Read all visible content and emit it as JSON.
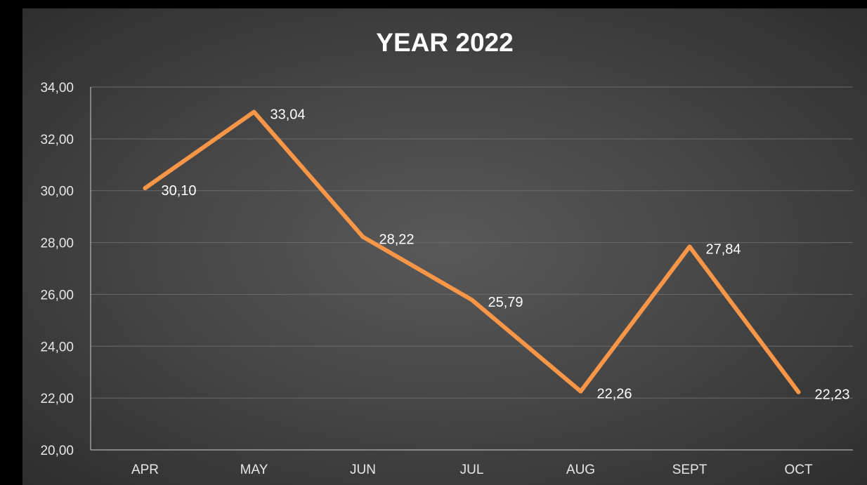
{
  "chart_data": {
    "type": "line",
    "title": "YEAR 2022",
    "categories": [
      "APR",
      "MAY",
      "JUN",
      "JUL",
      "AUG",
      "SEPT",
      "OCT"
    ],
    "series": [
      {
        "values": [
          30.1,
          33.04,
          28.22,
          25.79,
          22.26,
          27.84,
          22.23
        ],
        "labels": [
          "30,10",
          "33,04",
          "28,22",
          "25,79",
          "22,26",
          "27,84",
          "22,23"
        ],
        "color": "#f79646"
      }
    ],
    "y_ticks": [
      "20,00",
      "22,00",
      "24,00",
      "26,00",
      "28,00",
      "30,00",
      "32,00",
      "34,00"
    ],
    "ylim": [
      20,
      34
    ],
    "xlabel": "",
    "ylabel": "",
    "grid": true,
    "legend": "none"
  }
}
